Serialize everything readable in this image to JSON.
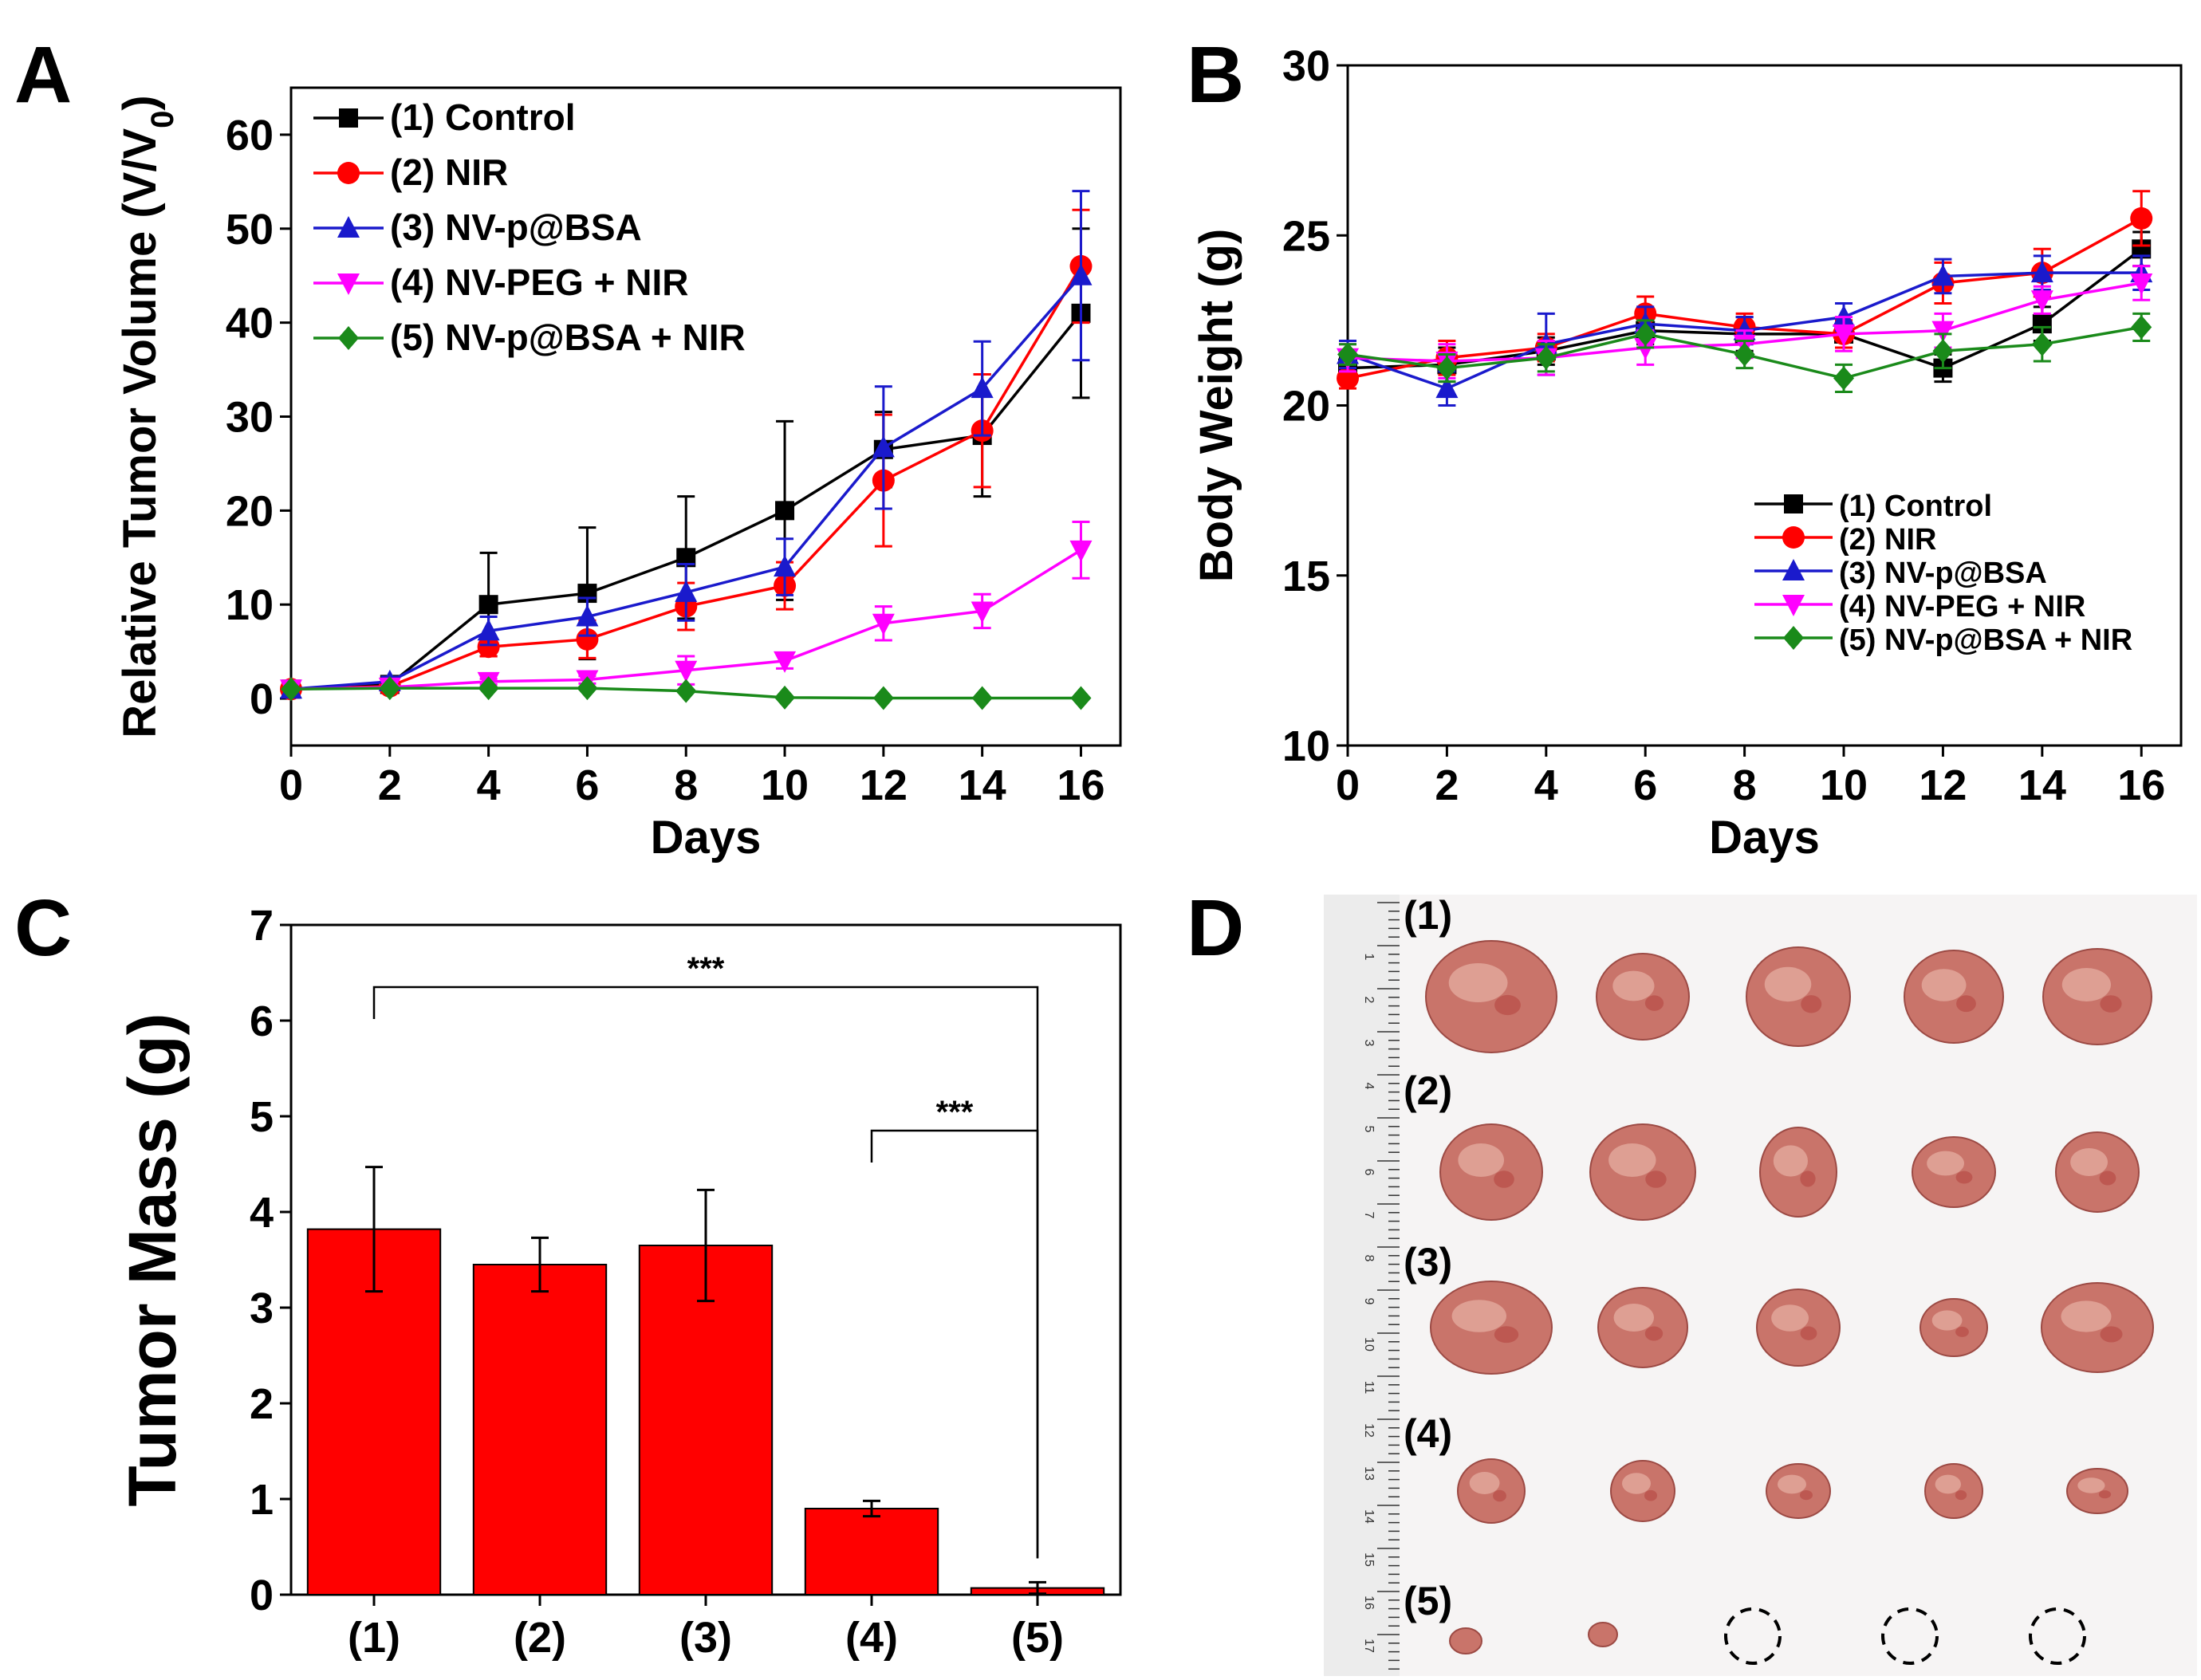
{
  "panel_letters": {
    "a": "A",
    "b": "B",
    "c": "C",
    "d": "D"
  },
  "colors": {
    "control": "#000000",
    "nir": "#ff0000",
    "nvbsa": "#1a1acc",
    "nvpeg": "#ff00ff",
    "combo": "#1a8a1a",
    "bar": "#ff0000"
  },
  "chart_data": [
    {
      "id": "A",
      "type": "line",
      "xlabel": "Days",
      "ylabel": "Relative Tumor Volume (V/V",
      "ylabel_sub": "0",
      "ylabel_end": ")",
      "xlim": [
        0,
        16.8
      ],
      "ylim": [
        -5,
        65
      ],
      "xticks": [
        0,
        2,
        4,
        6,
        8,
        10,
        12,
        14,
        16
      ],
      "yticks": [
        0,
        10,
        20,
        30,
        40,
        50,
        60
      ],
      "x": [
        0,
        2,
        4,
        6,
        8,
        10,
        12,
        14,
        16
      ],
      "series": [
        {
          "name": "(1) Control",
          "color_key": "control",
          "marker": "square",
          "values": [
            1,
            1.5,
            10,
            11.2,
            15,
            20,
            26.5,
            28,
            41
          ],
          "err": [
            0,
            0.5,
            5.5,
            7,
            6.5,
            9.5,
            4,
            6.5,
            9
          ]
        },
        {
          "name": "(2) NIR",
          "color_key": "nir",
          "marker": "circle",
          "values": [
            1,
            1.3,
            5.5,
            6.3,
            9.8,
            12,
            23.2,
            28.5,
            46
          ],
          "err": [
            0,
            0.4,
            1,
            2,
            2.5,
            2.5,
            7,
            6,
            6
          ]
        },
        {
          "name": "(3) NV-p@BSA",
          "color_key": "nvbsa",
          "marker": "triangle",
          "values": [
            1,
            1.8,
            7.2,
            8.7,
            11.3,
            14,
            26.7,
            33,
            45
          ],
          "err": [
            0,
            0.5,
            1.5,
            2,
            3,
            3,
            6.5,
            5,
            9
          ]
        },
        {
          "name": "(4) NV-PEG + NIR",
          "color_key": "nvpeg",
          "marker": "triangle-down",
          "values": [
            1,
            1.2,
            1.8,
            2,
            3,
            4,
            8,
            9.3,
            15.8
          ],
          "err": [
            0,
            0.2,
            0.3,
            0.4,
            1.5,
            0.8,
            1.8,
            1.8,
            3
          ]
        },
        {
          "name": "(5) NV-p@BSA + NIR",
          "color_key": "combo",
          "marker": "diamond",
          "values": [
            1,
            1.1,
            1.1,
            1.1,
            0.8,
            0.1,
            0.05,
            0.05,
            0.05
          ],
          "err": [
            0,
            0.1,
            0.1,
            0.1,
            0.1,
            0.05,
            0.05,
            0.05,
            0.05
          ]
        }
      ],
      "legend_position": "top-left"
    },
    {
      "id": "B",
      "type": "line",
      "xlabel": "Days",
      "ylabel": "Body Weight (g)",
      "xlim": [
        0,
        16.8
      ],
      "ylim": [
        10,
        30
      ],
      "xticks": [
        0,
        2,
        4,
        6,
        8,
        10,
        12,
        14,
        16
      ],
      "yticks": [
        10,
        15,
        20,
        25,
        30
      ],
      "x": [
        0,
        2,
        4,
        6,
        8,
        10,
        12,
        14,
        16
      ],
      "series": [
        {
          "name": "(1) Control",
          "color_key": "control",
          "marker": "square",
          "values": [
            21.1,
            21.2,
            21.6,
            22.2,
            22.1,
            22.1,
            21.1,
            22.4,
            24.6
          ],
          "err": [
            0.3,
            0.5,
            0.4,
            0.4,
            0.5,
            0.4,
            0.4,
            0.5,
            0.5
          ]
        },
        {
          "name": "(2) NIR",
          "color_key": "nir",
          "marker": "circle",
          "values": [
            20.8,
            21.4,
            21.7,
            22.7,
            22.3,
            22.1,
            23.6,
            23.9,
            25.5
          ],
          "err": [
            0.3,
            0.5,
            0.4,
            0.5,
            0.4,
            0.4,
            0.6,
            0.7,
            0.8
          ]
        },
        {
          "name": "(3) NV-p@BSA",
          "color_key": "nvbsa",
          "marker": "triangle",
          "values": [
            21.5,
            20.5,
            21.8,
            22.4,
            22.2,
            22.6,
            23.8,
            23.9,
            23.9
          ],
          "err": [
            0.4,
            0.5,
            0.9,
            0.5,
            0.4,
            0.4,
            0.5,
            0.5,
            0.5
          ]
        },
        {
          "name": "(4) NV-PEG + NIR",
          "color_key": "nvpeg",
          "marker": "triangle-down",
          "values": [
            21.4,
            21.3,
            21.4,
            21.7,
            21.8,
            22.1,
            22.2,
            23.1,
            23.6
          ],
          "err": [
            0.4,
            0.5,
            0.5,
            0.5,
            0.4,
            0.5,
            0.5,
            0.4,
            0.5
          ]
        },
        {
          "name": "(5) NV-p@BSA + NIR",
          "color_key": "combo",
          "marker": "diamond",
          "values": [
            21.5,
            21.1,
            21.4,
            22.1,
            21.5,
            20.8,
            21.6,
            21.8,
            22.3
          ],
          "err": [
            0.3,
            0.4,
            0.4,
            0.4,
            0.4,
            0.4,
            0.5,
            0.5,
            0.4
          ]
        }
      ],
      "legend_position": "bottom-right"
    },
    {
      "id": "C",
      "type": "bar",
      "xlabel": "",
      "ylabel": "Tumor Mass (g)",
      "ylim": [
        0,
        7
      ],
      "yticks": [
        0,
        1,
        2,
        3,
        4,
        5,
        6,
        7
      ],
      "categories": [
        "(1)",
        "(2)",
        "(3)",
        "(4)",
        "(5)"
      ],
      "values": [
        3.82,
        3.45,
        3.65,
        0.9,
        0.07
      ],
      "err": [
        0.65,
        0.28,
        0.58,
        0.08,
        0.06
      ],
      "significance": [
        {
          "from": 0,
          "to": 4,
          "label": "***",
          "y": 6.35
        },
        {
          "from": 3,
          "to": 4,
          "label": "***",
          "y": 4.85
        }
      ]
    }
  ],
  "photo": {
    "row_labels": [
      "(1)",
      "(2)",
      "(3)",
      "(4)",
      "(5)"
    ],
    "ruler_numbers": [
      "1",
      "2",
      "3",
      "4",
      "5",
      "6",
      "7",
      "8",
      "9",
      "10",
      "11",
      "12",
      "13",
      "14",
      "15",
      "16",
      "17"
    ]
  }
}
